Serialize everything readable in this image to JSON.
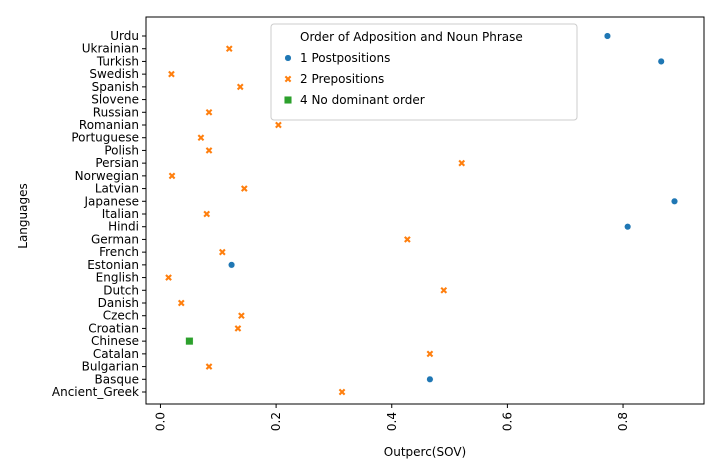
{
  "chart_data": {
    "type": "scatter",
    "title": "",
    "xlabel": "Outperc(SOV)",
    "ylabel": "Languages",
    "xlim": [
      -0.025,
      0.94
    ],
    "x_ticks": [
      "0.0",
      "0.2",
      "0.4",
      "0.6",
      "0.8"
    ],
    "x_tick_values": [
      0.0,
      0.2,
      0.4,
      0.6,
      0.8
    ],
    "grid": false,
    "legend": {
      "title": "Order of Adposition and Noun Phrase",
      "placement": "top-center"
    },
    "categories": [
      "Urdu",
      "Ukrainian",
      "Turkish",
      "Swedish",
      "Spanish",
      "Slovene",
      "Russian",
      "Romanian",
      "Portuguese",
      "Polish",
      "Persian",
      "Norwegian",
      "Latvian",
      "Japanese",
      "Italian",
      "Hindi",
      "German",
      "French",
      "Estonian",
      "English",
      "Dutch",
      "Danish",
      "Czech",
      "Croatian",
      "Chinese",
      "Catalan",
      "Bulgarian",
      "Basque",
      "Ancient_Greek"
    ],
    "series": [
      {
        "name": "1 Postpositions",
        "color": "#1f77b4",
        "marker": "circle",
        "points": [
          {
            "y": "Urdu",
            "x": 0.773
          },
          {
            "y": "Turkish",
            "x": 0.866
          },
          {
            "y": "Japanese",
            "x": 0.889
          },
          {
            "y": "Hindi",
            "x": 0.808
          },
          {
            "y": "Estonian",
            "x": 0.123
          },
          {
            "y": "Basque",
            "x": 0.466
          }
        ]
      },
      {
        "name": "2 Prepositions",
        "color": "#ff7f0e",
        "marker": "x",
        "points": [
          {
            "y": "Ukrainian",
            "x": 0.119
          },
          {
            "y": "Swedish",
            "x": 0.019
          },
          {
            "y": "Spanish",
            "x": 0.138
          },
          {
            "y": "Russian",
            "x": 0.084
          },
          {
            "y": "Romanian",
            "x": 0.204
          },
          {
            "y": "Portuguese",
            "x": 0.07
          },
          {
            "y": "Polish",
            "x": 0.084
          },
          {
            "y": "Persian",
            "x": 0.521
          },
          {
            "y": "Norwegian",
            "x": 0.02
          },
          {
            "y": "Latvian",
            "x": 0.145
          },
          {
            "y": "Italian",
            "x": 0.08
          },
          {
            "y": "German",
            "x": 0.427
          },
          {
            "y": "French",
            "x": 0.107
          },
          {
            "y": "English",
            "x": 0.014
          },
          {
            "y": "Dutch",
            "x": 0.49
          },
          {
            "y": "Danish",
            "x": 0.036
          },
          {
            "y": "Czech",
            "x": 0.14
          },
          {
            "y": "Croatian",
            "x": 0.134
          },
          {
            "y": "Catalan",
            "x": 0.466
          },
          {
            "y": "Bulgarian",
            "x": 0.084
          },
          {
            "y": "Ancient_Greek",
            "x": 0.314
          }
        ]
      },
      {
        "name": "4 No dominant order",
        "color": "#2ca02c",
        "marker": "square",
        "points": [
          {
            "y": "Chinese",
            "x": 0.05
          }
        ]
      }
    ]
  }
}
